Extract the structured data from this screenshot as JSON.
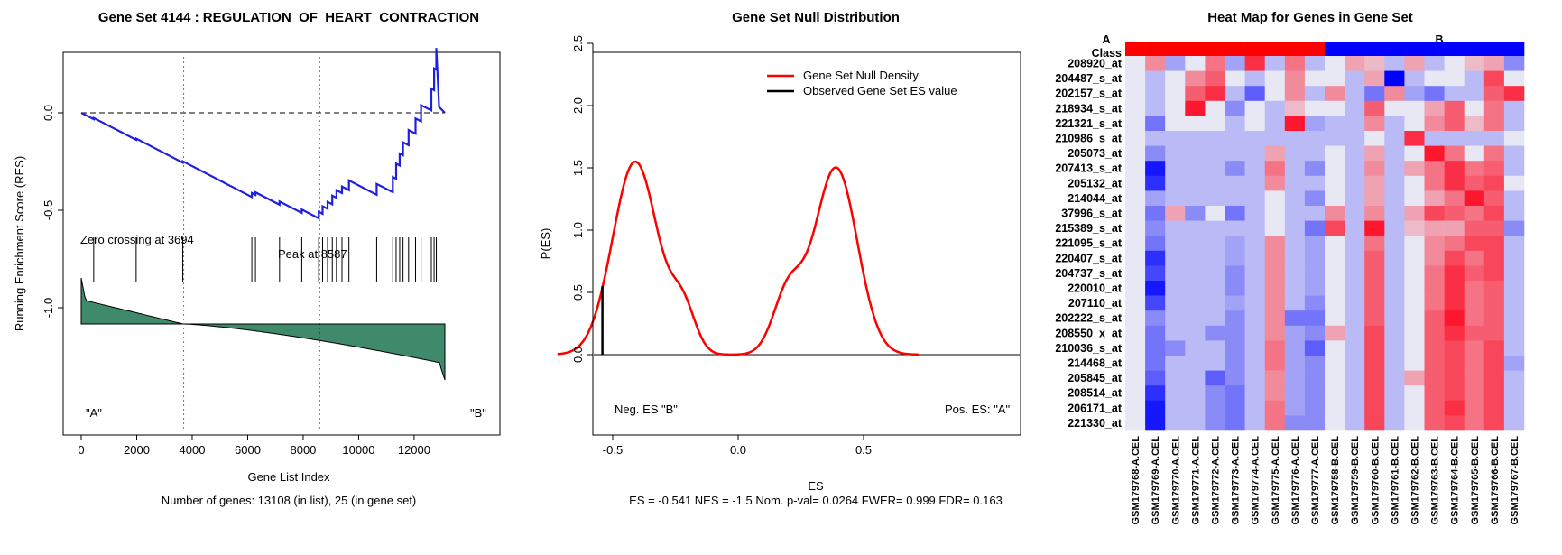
{
  "colors": {
    "running_es": "#1f1fe0",
    "area_fill": "#3e8a6b",
    "null_density": "#ff0000",
    "peak_line": "#0000cc",
    "zero_line": "#00cc00",
    "class_a": "#ff0000",
    "class_b": "#0000ff",
    "heat_high": "#ff0000",
    "heat_low": "#0000ff",
    "heat_mid": "#e8e8f4"
  },
  "chart_data": [
    {
      "type": "line",
      "title": "Gene Set  4144 : REGULATION_OF_HEART_CONTRACTION",
      "xlabel": "Gene List Index",
      "ylabel": "Running Enrichment Score (RES)",
      "subtitle": "Number of genes: 13108 (in list), 25 (in gene set)",
      "xlim": [
        0,
        13108
      ],
      "ylim": [
        -1.4,
        0.3
      ],
      "xticks": [
        0,
        2000,
        4000,
        6000,
        8000,
        10000,
        12000
      ],
      "yticks": [
        0.0,
        -0.5,
        -1.0
      ],
      "zero_crossing_label": "Zero crossing at 3694",
      "zero_crossing": 3694,
      "peak_label": "Peak at 8587",
      "peak": 8587,
      "class_a_label": "\"A\"",
      "class_b_label": "\"B\"",
      "hit_indices": [
        450,
        1980,
        3660,
        6150,
        6280,
        7150,
        7950,
        8560,
        8700,
        8880,
        9050,
        9200,
        9400,
        9650,
        10650,
        11230,
        11350,
        11480,
        11600,
        11800,
        12050,
        12250,
        12620,
        12720,
        12800
      ],
      "hit_weights": [
        0.006,
        0.006,
        0.006,
        0.018,
        0.012,
        0.015,
        0.016,
        0.03,
        0.035,
        0.032,
        0.04,
        0.035,
        0.03,
        0.045,
        0.05,
        0.07,
        0.07,
        0.055,
        0.06,
        0.07,
        0.07,
        0.075,
        0.1,
        0.1,
        0.1
      ]
    },
    {
      "type": "line",
      "title": "Gene Set Null Distribution",
      "xlabel": "ES",
      "ylabel": "P(ES)",
      "subtitle": "ES = -0.541  NES = -1.5 Nom. p-val= 0.0264 FWER= 0.999 FDR= 0.163",
      "xlim": [
        -0.72,
        0.72
      ],
      "ylim": [
        0,
        2.5
      ],
      "xticks": [
        -0.5,
        0.0,
        0.5
      ],
      "yticks": [
        0.0,
        0.5,
        1.0,
        1.5,
        2.0,
        2.5
      ],
      "legend": [
        "Gene Set Null Density",
        "Observed Gene Set ES value"
      ],
      "legend_position": "top-right",
      "neg_label": "Neg. ES \"B\"",
      "pos_label": "Pos. ES: \"A\"",
      "observed_es": -0.541,
      "observed_height": 0.55,
      "density_peaks": [
        {
          "mu": -0.41,
          "sigma": 0.09,
          "amp": 1.55
        },
        {
          "mu": -0.22,
          "sigma": 0.05,
          "amp": 0.35
        },
        {
          "mu": 0.39,
          "sigma": 0.085,
          "amp": 1.5
        },
        {
          "mu": 0.2,
          "sigma": 0.06,
          "amp": 0.5
        }
      ]
    },
    {
      "type": "heatmap",
      "title": "Heat Map for Genes in Gene Set",
      "class_label": "Class",
      "class_a": "A",
      "class_b": "B",
      "columns": [
        "GSM179768-A.CEL",
        "GSM179769-A.CEL",
        "GSM179770-A.CEL",
        "GSM179771-A.CEL",
        "GSM179772-A.CEL",
        "GSM179773-A.CEL",
        "GSM179774-A.CEL",
        "GSM179775-A.CEL",
        "GSM179776-A.CEL",
        "GSM179777-A.CEL",
        "GSM179758-B.CEL",
        "GSM179759-B.CEL",
        "GSM179760-B.CEL",
        "GSM179761-B.CEL",
        "GSM179762-B.CEL",
        "GSM179763-B.CEL",
        "GSM179764-B.CEL",
        "GSM179765-B.CEL",
        "GSM179766-B.CEL",
        "GSM179767-B.CEL"
      ],
      "column_class": [
        "A",
        "A",
        "A",
        "A",
        "A",
        "A",
        "A",
        "A",
        "A",
        "A",
        "B",
        "B",
        "B",
        "B",
        "B",
        "B",
        "B",
        "B",
        "B",
        "B"
      ],
      "rows": [
        "208920_at",
        "204487_s_at",
        "202157_s_at",
        "218934_s_at",
        "221321_s_at",
        "210986_s_at",
        "205073_at",
        "207413_s_at",
        "205132_at",
        "214044_at",
        "37996_s_at",
        "215389_s_at",
        "221095_s_at",
        "220407_s_at",
        "204737_s_at",
        "220010_at",
        "207110_at",
        "202222_s_at",
        "208550_x_at",
        "210036_s_at",
        "214468_at",
        "205845_at",
        "208514_at",
        "206171_at",
        "221330_at"
      ],
      "values": [
        [
          0,
          0.4,
          -0.3,
          0,
          0.5,
          -0.3,
          0.8,
          -0.2,
          0.5,
          -0.2,
          0,
          0.3,
          0.2,
          -0.2,
          0.3,
          -0.2,
          0,
          0.2,
          0.3,
          -0.4
        ],
        [
          0,
          -0.2,
          0,
          0.4,
          0.6,
          0,
          -0.2,
          0,
          0.4,
          0,
          0,
          -0.2,
          0.3,
          -1,
          -0.2,
          0,
          0,
          -0.2,
          0.7,
          0
        ],
        [
          0,
          -0.2,
          0,
          0.6,
          0.8,
          -0.2,
          -0.6,
          0,
          0.4,
          -0.2,
          0.4,
          -0.2,
          -0.5,
          0.4,
          -0.3,
          -0.5,
          -0.2,
          -0.2,
          0.6,
          0.8
        ],
        [
          0,
          -0.2,
          0,
          0.9,
          0,
          -0.4,
          0,
          -0.2,
          0.2,
          0,
          0,
          -0.2,
          0.6,
          0,
          0,
          0.3,
          0.6,
          0,
          0.5,
          -0.2
        ],
        [
          0,
          -0.5,
          0,
          0,
          0,
          -0.2,
          0,
          -0.2,
          0.9,
          -0.3,
          -0.2,
          -0.2,
          0.4,
          -0.2,
          0,
          0.4,
          0.6,
          0.2,
          0.5,
          -0.2
        ],
        [
          0,
          -0.2,
          -0.2,
          -0.2,
          -0.2,
          -0.2,
          -0.2,
          -0.2,
          -0.2,
          -0.2,
          -0.2,
          -0.2,
          0,
          -0.2,
          0.8,
          -0.2,
          -0.2,
          -0.2,
          -0.2,
          0
        ],
        [
          0,
          -0.4,
          -0.2,
          -0.2,
          -0.2,
          -0.2,
          -0.2,
          0.3,
          -0.2,
          -0.2,
          0,
          -0.2,
          0.3,
          -0.2,
          0,
          0.9,
          0.5,
          0,
          0.5,
          -0.2
        ],
        [
          0,
          -0.9,
          -0.2,
          -0.2,
          -0.2,
          -0.4,
          -0.2,
          0.5,
          -0.2,
          -0.4,
          0,
          -0.2,
          0.4,
          -0.2,
          0.3,
          0.5,
          0.8,
          0.5,
          0.6,
          -0.2
        ],
        [
          0,
          -0.8,
          -0.2,
          -0.2,
          -0.2,
          -0.2,
          -0.2,
          0.4,
          -0.2,
          -0.2,
          0,
          -0.2,
          0.3,
          -0.2,
          0,
          0.5,
          0.8,
          0.6,
          0.7,
          0
        ],
        [
          0,
          -0.3,
          -0.2,
          -0.2,
          -0.2,
          -0.2,
          -0.2,
          0,
          -0.2,
          -0.4,
          0,
          -0.2,
          0.3,
          -0.2,
          0,
          0.3,
          0.5,
          0.9,
          0.6,
          -0.2
        ],
        [
          0,
          -0.5,
          0.3,
          -0.4,
          0,
          -0.5,
          -0.2,
          0,
          -0.2,
          -0.2,
          0.4,
          -0.2,
          0.4,
          -0.2,
          0.3,
          0.7,
          0.6,
          0.5,
          0.7,
          -0.2
        ],
        [
          0,
          -0.4,
          -0.2,
          -0.2,
          -0.2,
          -0.2,
          -0.2,
          0,
          -0.2,
          -0.5,
          0.7,
          -0.2,
          0.9,
          -0.2,
          0.2,
          0.3,
          0.3,
          0.6,
          0.6,
          -0.4
        ],
        [
          0,
          -0.5,
          -0.2,
          -0.2,
          -0.2,
          -0.3,
          -0.2,
          0.4,
          -0.2,
          -0.3,
          0,
          -0.2,
          0.5,
          -0.2,
          0,
          0.4,
          0.5,
          0.7,
          0.7,
          -0.2
        ],
        [
          0,
          -0.8,
          -0.2,
          -0.2,
          -0.2,
          -0.3,
          -0.2,
          0.4,
          -0.2,
          -0.3,
          0,
          -0.2,
          0.6,
          -0.2,
          0,
          0.4,
          0.7,
          0.5,
          0.7,
          -0.2
        ],
        [
          0,
          -0.7,
          -0.2,
          -0.2,
          -0.2,
          -0.4,
          -0.2,
          0.4,
          -0.2,
          -0.3,
          0,
          -0.2,
          0.6,
          -0.2,
          0,
          0.5,
          0.8,
          0.6,
          0.7,
          -0.2
        ],
        [
          0,
          -0.9,
          -0.2,
          -0.2,
          -0.2,
          -0.4,
          -0.2,
          0.4,
          -0.2,
          -0.3,
          0,
          -0.2,
          0.6,
          -0.2,
          0,
          0.5,
          0.8,
          0.5,
          0.6,
          -0.2
        ],
        [
          0,
          -0.7,
          -0.2,
          -0.2,
          -0.2,
          -0.3,
          -0.2,
          0.4,
          -0.2,
          -0.4,
          0,
          -0.2,
          0.6,
          -0.2,
          0,
          0.5,
          0.8,
          0.5,
          0.6,
          -0.2
        ],
        [
          0,
          -0.4,
          -0.2,
          -0.2,
          -0.2,
          -0.4,
          -0.2,
          0.4,
          -0.5,
          -0.5,
          0,
          -0.2,
          0.6,
          -0.2,
          0,
          0.6,
          0.9,
          0.5,
          0.6,
          -0.2
        ],
        [
          0,
          -0.5,
          -0.2,
          -0.2,
          -0.4,
          -0.4,
          -0.2,
          0.4,
          -0.3,
          -0.4,
          0.3,
          -0.2,
          0.7,
          -0.2,
          0,
          0.6,
          0.8,
          0.6,
          0.6,
          -0.2
        ],
        [
          0,
          -0.5,
          -0.4,
          -0.2,
          -0.2,
          -0.4,
          -0.2,
          0.5,
          -0.3,
          -0.6,
          0,
          -0.2,
          0.7,
          -0.2,
          0,
          0.6,
          0.7,
          0.5,
          0.7,
          -0.2
        ],
        [
          0,
          -0.5,
          -0.2,
          -0.2,
          -0.2,
          -0.4,
          -0.2,
          0.5,
          -0.3,
          -0.4,
          0,
          -0.2,
          0.7,
          -0.2,
          0,
          0.6,
          0.7,
          0.5,
          0.7,
          -0.3
        ],
        [
          0,
          -0.6,
          -0.2,
          -0.2,
          -0.6,
          -0.4,
          -0.2,
          0.4,
          -0.3,
          -0.4,
          0,
          -0.2,
          0.7,
          -0.2,
          0.3,
          0.6,
          0.7,
          0.5,
          0.7,
          -0.2
        ],
        [
          0,
          -0.8,
          -0.2,
          -0.2,
          -0.4,
          -0.5,
          -0.2,
          0.4,
          -0.3,
          -0.4,
          0,
          -0.2,
          0.7,
          -0.2,
          0,
          0.6,
          0.7,
          0.5,
          0.7,
          -0.2
        ],
        [
          0,
          -0.9,
          -0.2,
          -0.2,
          -0.4,
          -0.5,
          -0.2,
          0.5,
          -0.3,
          -0.4,
          0,
          -0.2,
          0.7,
          -0.2,
          0,
          0.6,
          0.8,
          0.5,
          0.7,
          -0.2
        ],
        [
          0,
          -0.9,
          -0.2,
          -0.2,
          -0.4,
          -0.5,
          -0.2,
          0.5,
          -0.4,
          -0.4,
          0,
          -0.2,
          0.7,
          -0.2,
          0,
          0.6,
          0.7,
          0.5,
          0.7,
          -0.2
        ]
      ]
    }
  ]
}
